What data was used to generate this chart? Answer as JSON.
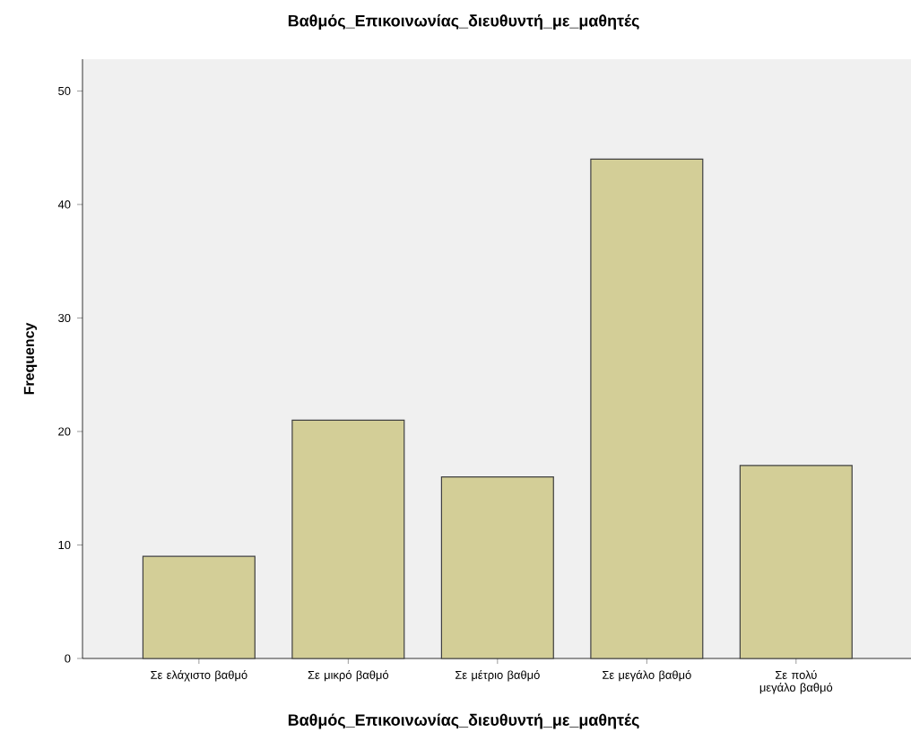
{
  "chart_data": {
    "type": "bar",
    "title": "Βαθμός_Επικοινωνίας_διευθυντή_με_μαθητές",
    "xlabel": "Βαθμός_Επικοινωνίας_διευθυντή_με_μαθητές",
    "ylabel": "Frequency",
    "categories": [
      "Σε ελάχιστο βαθμό",
      "Σε μικρό βαθμό",
      "Σε μέτριο βαθμό",
      "Σε μεγάλο βαθμό",
      "Σε πολύ μεγάλο βαθμό"
    ],
    "values": [
      9,
      21,
      16,
      44,
      17
    ],
    "color": "#d3ce97",
    "ylim": [
      0,
      52.8
    ],
    "yticks": [
      0,
      10,
      20,
      30,
      40,
      50
    ],
    "grid": false
  }
}
